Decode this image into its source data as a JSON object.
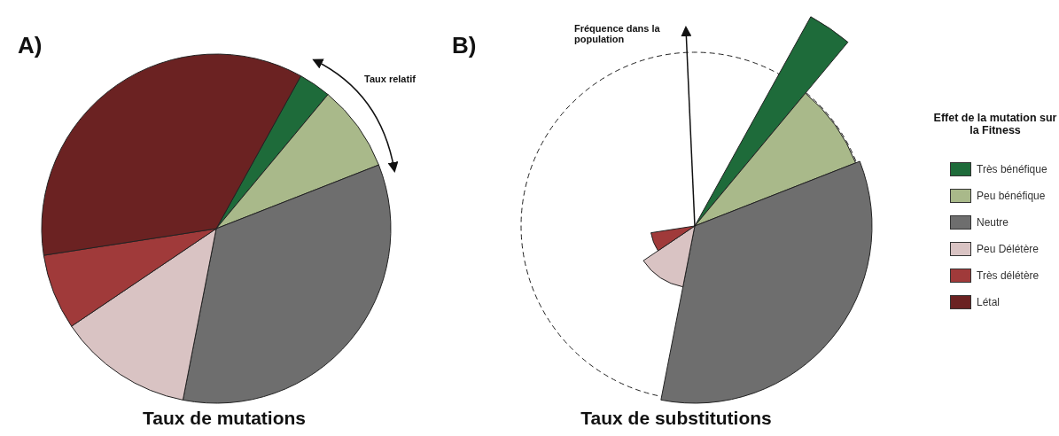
{
  "chart_data": [
    {
      "type": "pie",
      "title": "Taux de mutations",
      "categories": [
        "Très bénéfique",
        "Peu bénéfique",
        "Neutre",
        "Peu Délétère",
        "Très délétère",
        "Létal"
      ],
      "values": [
        3,
        8,
        34,
        12.5,
        7,
        35.5
      ],
      "colors": [
        "#1e6b3a",
        "#a9b98a",
        "#6e6e6e",
        "#d9c3c3",
        "#a03a3a",
        "#6b2222"
      ],
      "legend": "right",
      "legend_title": "Effet de la mutation sur la Fitness",
      "annotations": [
        "A)",
        "Taux relatif"
      ]
    },
    {
      "type": "other",
      "title": "Taux de substitutions",
      "annotations": [
        "B)",
        "Fréquence dans la population"
      ]
    }
  ]
}
